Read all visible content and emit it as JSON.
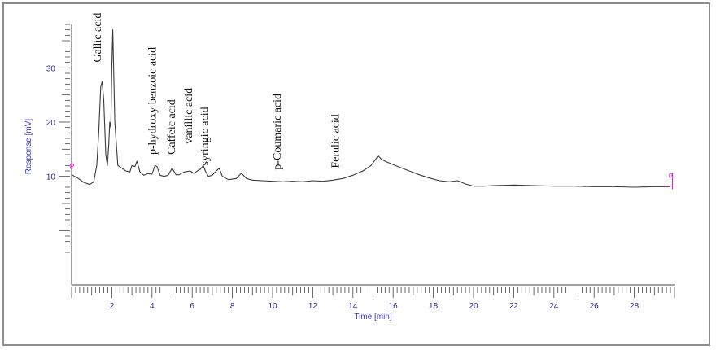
{
  "chart_data": {
    "type": "line",
    "title": "",
    "xlabel": "Time [min]",
    "ylabel": "Response [mV]",
    "xlim": [
      0,
      30
    ],
    "ylim": [
      -10,
      38
    ],
    "x_ticks": [
      2,
      4,
      6,
      8,
      10,
      12,
      14,
      16,
      18,
      20,
      22,
      24,
      26,
      28
    ],
    "y_ticks": [
      10,
      20,
      30
    ],
    "grid": false,
    "line_color": "#3a3a3a",
    "axis_color": "#444444",
    "axis_label_color": "#3a3ad0",
    "marker_color": "#e020e0",
    "series": [
      {
        "x": [
          0,
          0.3,
          0.6,
          0.9,
          1.1,
          1.25,
          1.35,
          1.45,
          1.52,
          1.6,
          1.7,
          1.78,
          1.85,
          1.9,
          1.95,
          2.0,
          2.05,
          2.15,
          2.3,
          2.5,
          2.7,
          2.9,
          3.0,
          3.15,
          3.25,
          3.4,
          3.6,
          3.8,
          4.0,
          4.15,
          4.25,
          4.4,
          4.6,
          4.8,
          5.0,
          5.2,
          5.35,
          5.6,
          5.9,
          6.1,
          6.25,
          6.4,
          6.55,
          6.65,
          6.8,
          7.0,
          7.2,
          7.35,
          7.5,
          7.8,
          8.2,
          8.45,
          8.7,
          9.0,
          9.5,
          10.0,
          10.5,
          11.0,
          11.5,
          12.0,
          12.5,
          13.0,
          13.5,
          14.0,
          14.5,
          14.9,
          15.1,
          15.25,
          15.4,
          15.6,
          15.9,
          16.3,
          16.8,
          17.3,
          17.8,
          18.3,
          18.8,
          19.2,
          19.6,
          20.0,
          20.5,
          21.0,
          22.0,
          23.0,
          24.0,
          25.0,
          26.0,
          27.0,
          28.0,
          29.0,
          29.8
        ],
        "values": [
          10.3,
          9.7,
          8.9,
          8.5,
          9.0,
          12.0,
          18.0,
          26.5,
          27.5,
          24.0,
          14.0,
          12.0,
          16.0,
          20.0,
          19.0,
          30.0,
          37.0,
          20.0,
          12.0,
          11.5,
          11.0,
          10.8,
          12.0,
          11.8,
          12.8,
          10.8,
          10.2,
          10.5,
          10.4,
          12.0,
          11.8,
          10.2,
          10.0,
          10.2,
          11.5,
          10.3,
          10.3,
          10.8,
          11.0,
          10.5,
          11.0,
          11.3,
          12.0,
          11.0,
          10.0,
          10.2,
          11.0,
          11.5,
          10.0,
          9.4,
          9.6,
          10.6,
          9.6,
          9.3,
          9.2,
          9.1,
          9.0,
          9.1,
          9.0,
          9.2,
          9.1,
          9.3,
          9.6,
          10.2,
          11.0,
          12.0,
          13.0,
          13.8,
          13.2,
          12.8,
          12.3,
          11.7,
          11.0,
          10.3,
          9.7,
          9.2,
          9.0,
          9.2,
          8.6,
          8.2,
          8.2,
          8.3,
          8.4,
          8.3,
          8.2,
          8.2,
          8.1,
          8.1,
          8.0,
          8.1,
          8.1
        ]
      }
    ],
    "annotations": [
      {
        "text": "Gallic acid",
        "x": 1.45,
        "y": 31
      },
      {
        "text": "p-hydroxy benzoic acid",
        "x": 4.2,
        "y": 14
      },
      {
        "text": "Caffeic acid",
        "x": 5.15,
        "y": 14
      },
      {
        "text": "vanillic acid",
        "x": 6.0,
        "y": 16
      },
      {
        "text": "syringic acid",
        "x": 6.8,
        "y": 12
      },
      {
        "text": "p-Coumaric acid",
        "x": 10.4,
        "y": 11.2
      },
      {
        "text": "Ferulic acid",
        "x": 13.3,
        "y": 11.5
      }
    ],
    "markers": [
      {
        "label": "P",
        "x": 0.02,
        "y": 12.0
      },
      {
        "label": "P",
        "x": 29.9,
        "y": 10.3
      }
    ]
  }
}
